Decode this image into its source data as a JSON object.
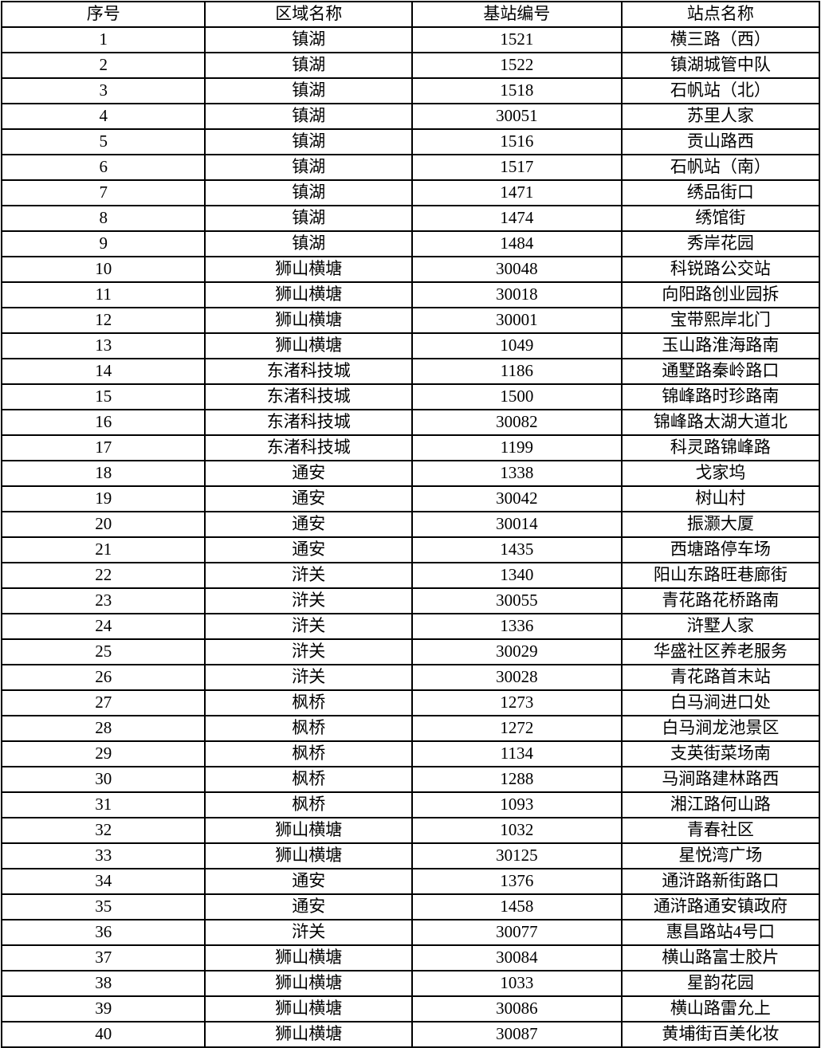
{
  "table": {
    "headers": [
      "序号",
      "区域名称",
      "基站编号",
      "站点名称"
    ],
    "rows": [
      [
        "1",
        "镇湖",
        "1521",
        "横三路（西）"
      ],
      [
        "2",
        "镇湖",
        "1522",
        "镇湖城管中队"
      ],
      [
        "3",
        "镇湖",
        "1518",
        "石帆站（北）"
      ],
      [
        "4",
        "镇湖",
        "30051",
        "苏里人家"
      ],
      [
        "5",
        "镇湖",
        "1516",
        "贡山路西"
      ],
      [
        "6",
        "镇湖",
        "1517",
        "石帆站（南）"
      ],
      [
        "7",
        "镇湖",
        "1471",
        "绣品街口"
      ],
      [
        "8",
        "镇湖",
        "1474",
        "绣馆街"
      ],
      [
        "9",
        "镇湖",
        "1484",
        "秀岸花园"
      ],
      [
        "10",
        "狮山横塘",
        "30048",
        "科锐路公交站"
      ],
      [
        "11",
        "狮山横塘",
        "30018",
        "向阳路创业园拆"
      ],
      [
        "12",
        "狮山横塘",
        "30001",
        "宝带熙岸北门"
      ],
      [
        "13",
        "狮山横塘",
        "1049",
        "玉山路淮海路南"
      ],
      [
        "14",
        "东渚科技城",
        "1186",
        "通墅路秦岭路口"
      ],
      [
        "15",
        "东渚科技城",
        "1500",
        "锦峰路时珍路南"
      ],
      [
        "16",
        "东渚科技城",
        "30082",
        "锦峰路太湖大道北"
      ],
      [
        "17",
        "东渚科技城",
        "1199",
        "科灵路锦峰路"
      ],
      [
        "18",
        "通安",
        "1338",
        "戈家坞"
      ],
      [
        "19",
        "通安",
        "30042",
        "树山村"
      ],
      [
        "20",
        "通安",
        "30014",
        "振灏大厦"
      ],
      [
        "21",
        "通安",
        "1435",
        "西塘路停车场"
      ],
      [
        "22",
        "浒关",
        "1340",
        "阳山东路旺巷廊街"
      ],
      [
        "23",
        "浒关",
        "30055",
        "青花路花桥路南"
      ],
      [
        "24",
        "浒关",
        "1336",
        "浒墅人家"
      ],
      [
        "25",
        "浒关",
        "30029",
        "华盛社区养老服务"
      ],
      [
        "26",
        "浒关",
        "30028",
        "青花路首末站"
      ],
      [
        "27",
        "枫桥",
        "1273",
        "白马涧进口处"
      ],
      [
        "28",
        "枫桥",
        "1272",
        "白马涧龙池景区"
      ],
      [
        "29",
        "枫桥",
        "1134",
        "支英街菜场南"
      ],
      [
        "30",
        "枫桥",
        "1288",
        "马涧路建林路西"
      ],
      [
        "31",
        "枫桥",
        "1093",
        "湘江路何山路"
      ],
      [
        "32",
        "狮山横塘",
        "1032",
        "青春社区"
      ],
      [
        "33",
        "狮山横塘",
        "30125",
        "星悦湾广场"
      ],
      [
        "34",
        "通安",
        "1376",
        "通浒路新街路口"
      ],
      [
        "35",
        "通安",
        "1458",
        "通浒路通安镇政府"
      ],
      [
        "36",
        "浒关",
        "30077",
        "惠昌路站4号口"
      ],
      [
        "37",
        "狮山横塘",
        "30084",
        "横山路富士胶片"
      ],
      [
        "38",
        "狮山横塘",
        "1033",
        "星韵花园"
      ],
      [
        "39",
        "狮山横塘",
        "30086",
        "横山路雷允上"
      ],
      [
        "40",
        "狮山横塘",
        "30087",
        "黄埔街百美化妆"
      ]
    ],
    "colors": {
      "border": "#000000",
      "text": "#000000",
      "background": "#ffffff"
    }
  }
}
